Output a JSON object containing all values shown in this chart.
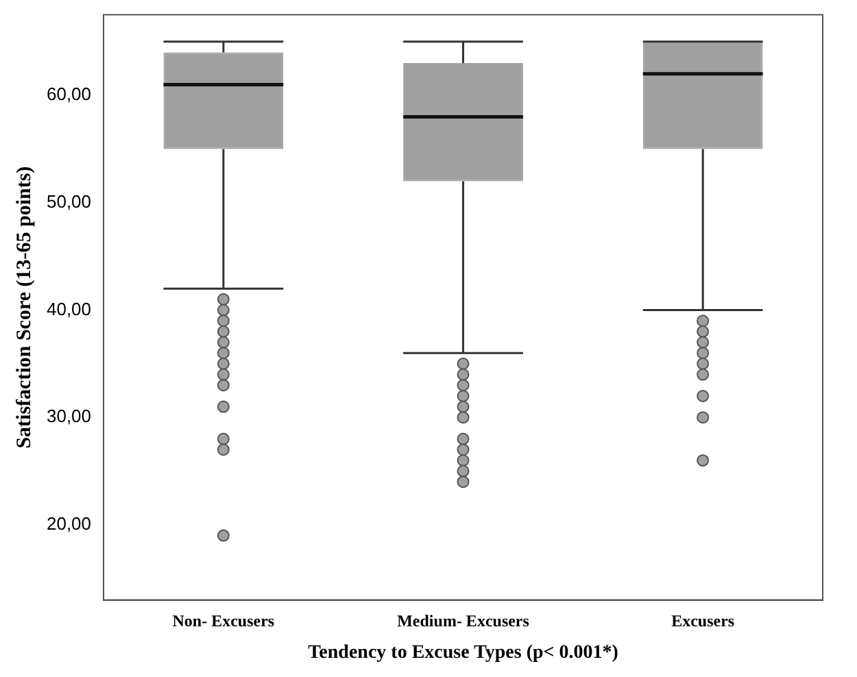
{
  "chart_data": {
    "type": "box",
    "xlabel": "Tendency to Excuse Types (p< 0.001*)",
    "ylabel": "Satisfaction Score (13-65 points)",
    "categories": [
      "Non- Excusers",
      "Medium- Excusers",
      "Excusers"
    ],
    "color": "#a0a0a0",
    "boxes": [
      {
        "low": 42,
        "q1": 55,
        "median": 61,
        "q3": 64,
        "high": 65,
        "outliers": [
          41,
          40,
          39,
          38,
          37,
          36,
          35,
          34,
          33,
          31,
          28,
          27,
          19
        ]
      },
      {
        "low": 36,
        "q1": 52,
        "median": 58,
        "q3": 63,
        "high": 65,
        "outliers": [
          35,
          34,
          33,
          32,
          31,
          30,
          28,
          27,
          26,
          25,
          24
        ]
      },
      {
        "low": 40,
        "q1": 55,
        "median": 62,
        "q3": 65,
        "high": 65,
        "outliers": [
          39,
          38,
          37,
          36,
          35,
          34,
          32,
          30,
          26
        ]
      }
    ],
    "ylim": [
      13,
      67.5
    ],
    "yticks": [
      {
        "value": 20,
        "label": "20,00"
      },
      {
        "value": 30,
        "label": "30,00"
      },
      {
        "value": 40,
        "label": "40,00"
      },
      {
        "value": 50,
        "label": "50,00"
      },
      {
        "value": 60,
        "label": "60,00"
      }
    ],
    "grid": false,
    "legend": false
  }
}
